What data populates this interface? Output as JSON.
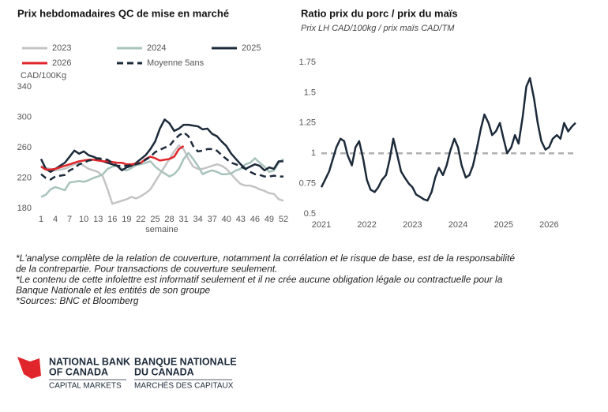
{
  "chart_data": [
    {
      "type": "line",
      "title": "Prix hebdomadaires QC de mise en marché",
      "y_label": "CAD/100Kg",
      "x_label": "semaine",
      "x": [
        1,
        2,
        3,
        4,
        5,
        6,
        7,
        8,
        9,
        10,
        11,
        12,
        13,
        14,
        15,
        16,
        17,
        18,
        19,
        20,
        21,
        22,
        23,
        24,
        25,
        26,
        27,
        28,
        29,
        30,
        31,
        32,
        33,
        34,
        35,
        36,
        37,
        38,
        39,
        40,
        41,
        42,
        43,
        44,
        45,
        46,
        47,
        48,
        49,
        50,
        51,
        52
      ],
      "xlim": [
        1,
        52
      ],
      "xticks": [
        1,
        4,
        7,
        10,
        13,
        16,
        19,
        22,
        25,
        28,
        31,
        34,
        37,
        40,
        43,
        46,
        49,
        52
      ],
      "ylim": [
        180,
        340
      ],
      "yticks": [
        180,
        220,
        260,
        300,
        340
      ],
      "grid": false,
      "series": [
        {
          "name": "2023",
          "color": "#c4c4c4",
          "dash": false,
          "values": [
            236,
            233,
            232,
            230,
            231,
            232,
            235,
            238,
            240,
            236,
            232,
            230,
            228,
            222,
            205,
            186,
            188,
            190,
            192,
            195,
            193,
            196,
            200,
            205,
            215,
            225,
            235,
            245,
            255,
            263,
            258,
            245,
            235,
            232,
            232,
            234,
            236,
            238,
            236,
            232,
            225,
            218,
            212,
            210,
            210,
            208,
            205,
            203,
            200,
            199,
            192,
            190
          ]
        },
        {
          "name": "2024",
          "color": "#a9c3bd",
          "dash": false,
          "values": [
            195,
            198,
            205,
            208,
            206,
            204,
            214,
            215,
            216,
            215,
            217,
            220,
            222,
            225,
            232,
            235,
            236,
            232,
            230,
            233,
            237,
            238,
            240,
            242,
            235,
            230,
            226,
            222,
            225,
            232,
            245,
            253,
            245,
            236,
            225,
            228,
            230,
            228,
            225,
            225,
            226,
            230,
            232,
            238,
            240,
            246,
            240,
            235,
            228,
            230,
            240,
            245
          ]
        },
        {
          "name": "2025",
          "color": "#1d2a3a",
          "dash": false,
          "values": [
            245,
            232,
            228,
            232,
            236,
            240,
            248,
            256,
            252,
            255,
            250,
            248,
            245,
            242,
            240,
            238,
            236,
            230,
            234,
            236,
            240,
            245,
            250,
            258,
            268,
            285,
            297,
            292,
            282,
            285,
            290,
            290,
            289,
            288,
            284,
            285,
            278,
            275,
            268,
            262,
            252,
            245,
            238,
            232,
            235,
            238,
            236,
            230,
            234,
            232,
            242,
            242
          ]
        },
        {
          "name": "2026",
          "color": "#e0262a",
          "dash": false,
          "values": [
            235,
            231,
            231,
            232,
            234,
            236,
            238,
            240,
            242,
            243,
            244,
            244,
            243,
            242,
            242,
            241,
            240,
            240,
            238,
            238,
            239,
            240,
            245,
            248,
            246,
            243,
            244,
            245,
            248,
            258,
            262,
            null,
            null,
            null,
            null,
            null,
            null,
            null,
            null,
            null,
            null,
            null,
            null,
            null,
            null,
            null,
            null,
            null,
            null,
            null,
            null,
            null
          ]
        },
        {
          "name": "Moyenne 5ans",
          "color": "#1d2a3a",
          "dash": true,
          "values": [
            225,
            220,
            218,
            222,
            223,
            224,
            230,
            233,
            238,
            240,
            243,
            244,
            246,
            245,
            244,
            240,
            236,
            236,
            236,
            237,
            238,
            240,
            244,
            248,
            254,
            257,
            260,
            262,
            270,
            276,
            280,
            275,
            262,
            255,
            256,
            258,
            258,
            256,
            250,
            245,
            240,
            238,
            235,
            232,
            228,
            225,
            224,
            222,
            222,
            223,
            222,
            222
          ]
        }
      ]
    },
    {
      "type": "line",
      "title": "Ratio prix du porc / prix du maïs",
      "subtitle": "Prix LH CAD/100kg / prix maïs CAD/TM",
      "x": [
        2021,
        2021.08,
        2021.17,
        2021.25,
        2021.33,
        2021.42,
        2021.5,
        2021.58,
        2021.67,
        2021.75,
        2021.83,
        2021.92,
        2022,
        2022.08,
        2022.17,
        2022.25,
        2022.33,
        2022.42,
        2022.5,
        2022.58,
        2022.67,
        2022.75,
        2022.83,
        2022.92,
        2023,
        2023.08,
        2023.17,
        2023.25,
        2023.33,
        2023.42,
        2023.5,
        2023.58,
        2023.67,
        2023.75,
        2023.83,
        2023.92,
        2024,
        2024.08,
        2024.17,
        2024.25,
        2024.33,
        2024.42,
        2024.5,
        2024.58,
        2024.67,
        2024.75,
        2024.83,
        2024.92,
        2025,
        2025.08,
        2025.17,
        2025.25,
        2025.33,
        2025.42,
        2025.5,
        2025.58,
        2025.67,
        2025.75,
        2025.83,
        2025.92,
        2026,
        2026.08,
        2026.17,
        2026.25,
        2026.33,
        2026.42,
        2026.5,
        2026.58
      ],
      "xlim": [
        2021,
        2026.6
      ],
      "xticks": [
        2021,
        2022,
        2023,
        2024,
        2025,
        2026
      ],
      "ylim": [
        0.5,
        1.75
      ],
      "yticks": [
        0.5,
        0.75,
        1,
        1.25,
        1.5,
        1.75
      ],
      "grid": false,
      "hline": 1,
      "series": [
        {
          "name": "Ratio",
          "color": "#1d2a3a",
          "dash": false,
          "values": [
            0.72,
            0.78,
            0.85,
            0.95,
            1.05,
            1.12,
            1.1,
            0.98,
            0.9,
            1.05,
            1.1,
            0.95,
            0.78,
            0.7,
            0.68,
            0.72,
            0.78,
            0.82,
            0.95,
            1.12,
            0.98,
            0.85,
            0.8,
            0.75,
            0.72,
            0.66,
            0.64,
            0.62,
            0.61,
            0.68,
            0.8,
            0.88,
            0.82,
            0.9,
            1.02,
            1.12,
            1.05,
            0.9,
            0.8,
            0.82,
            0.9,
            1.05,
            1.2,
            1.32,
            1.25,
            1.15,
            1.18,
            1.25,
            1.12,
            1.0,
            1.05,
            1.15,
            1.08,
            1.3,
            1.55,
            1.62,
            1.45,
            1.25,
            1.1,
            1.03,
            1.05,
            1.12,
            1.15,
            1.12,
            1.25,
            1.18,
            1.22,
            1.25
          ]
        }
      ]
    }
  ],
  "footnotes": [
    "*L'analyse complète de la relation de couverture, notamment la corrélation et le risque de base, est de la responsabilité",
    "de la contrepartie. Pour transactions de couverture seulement.",
    "*Le contenu de cette infolettre est informatif seulement et il ne crée aucune obligation légale ou contractuelle pour la",
    "Banque Nationale et les entités de son groupe",
    "*Sources: BNC et Bloomberg"
  ],
  "logo": {
    "en_line1": "NATIONAL BANK",
    "en_line2": "OF CANADA",
    "en_sub": "CAPITAL MARKETS",
    "fr_line1": "BANQUE NATIONALE",
    "fr_line2": "DU CANADA",
    "fr_sub": "MARCHÉS DES CAPITAUX"
  }
}
